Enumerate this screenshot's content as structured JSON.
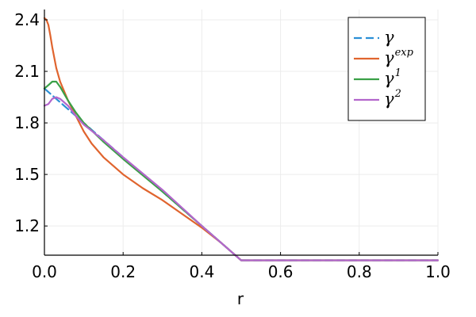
{
  "chart_data": {
    "type": "line",
    "title": "",
    "xlabel": "r",
    "ylabel": "",
    "xlim": [
      0.0,
      1.0
    ],
    "ylim": [
      1.03,
      2.46
    ],
    "xticks": [
      0.0,
      0.2,
      0.4,
      0.6,
      0.8,
      1.0
    ],
    "xtick_labels": [
      "0.0",
      "0.2",
      "0.4",
      "0.6",
      "0.8",
      "1.0"
    ],
    "yticks": [
      1.2,
      1.5,
      1.8,
      2.1,
      2.4
    ],
    "ytick_labels": [
      "1.2",
      "1.5",
      "1.8",
      "2.1",
      "2.4"
    ],
    "grid": true,
    "legend_position": "top-right",
    "series": [
      {
        "name": "γ",
        "symbol": "γ",
        "superscript": "",
        "color": "#2b8fd6",
        "dash": "dashed",
        "x": [
          0.0,
          0.1,
          0.2,
          0.3,
          0.4,
          0.5,
          0.55,
          0.6,
          0.7,
          0.8,
          0.9,
          1.0
        ],
        "y": [
          2.0,
          1.8,
          1.6,
          1.4,
          1.2,
          1.0,
          1.0,
          1.0,
          1.0,
          1.0,
          1.0,
          1.0
        ]
      },
      {
        "name": "γ^exp",
        "symbol": "γ",
        "superscript": "exp",
        "color": "#e0642e",
        "dash": "solid",
        "x": [
          0.0,
          0.005,
          0.01,
          0.015,
          0.02,
          0.03,
          0.04,
          0.06,
          0.08,
          0.1,
          0.12,
          0.15,
          0.2,
          0.25,
          0.3,
          0.35,
          0.4,
          0.45,
          0.5,
          0.55,
          0.6,
          0.7,
          0.8,
          0.9,
          1.0
        ],
        "y": [
          2.41,
          2.4,
          2.37,
          2.31,
          2.24,
          2.12,
          2.04,
          1.93,
          1.84,
          1.75,
          1.68,
          1.6,
          1.5,
          1.42,
          1.35,
          1.27,
          1.19,
          1.1,
          1.0,
          1.0,
          1.0,
          1.0,
          1.0,
          1.0,
          1.0
        ]
      },
      {
        "name": "γ^1",
        "symbol": "γ",
        "superscript": "1",
        "color": "#3aa047",
        "dash": "solid",
        "x": [
          0.0,
          0.01,
          0.02,
          0.03,
          0.04,
          0.06,
          0.08,
          0.1,
          0.15,
          0.2,
          0.3,
          0.4,
          0.5,
          0.6,
          0.7,
          0.8,
          0.9,
          1.0
        ],
        "y": [
          2.0,
          2.02,
          2.04,
          2.04,
          2.01,
          1.93,
          1.86,
          1.8,
          1.69,
          1.59,
          1.4,
          1.2,
          1.0,
          1.0,
          1.0,
          1.0,
          1.0,
          1.0
        ]
      },
      {
        "name": "γ^2",
        "symbol": "γ",
        "superscript": "2",
        "color": "#b366cc",
        "dash": "solid",
        "x": [
          0.0,
          0.01,
          0.02,
          0.03,
          0.04,
          0.06,
          0.08,
          0.1,
          0.15,
          0.2,
          0.3,
          0.4,
          0.5,
          0.6,
          0.7,
          0.8,
          0.9,
          1.0
        ],
        "y": [
          1.9,
          1.91,
          1.94,
          1.95,
          1.94,
          1.9,
          1.84,
          1.79,
          1.7,
          1.6,
          1.41,
          1.2,
          1.0,
          1.0,
          1.0,
          1.0,
          1.0,
          1.0
        ]
      }
    ]
  }
}
